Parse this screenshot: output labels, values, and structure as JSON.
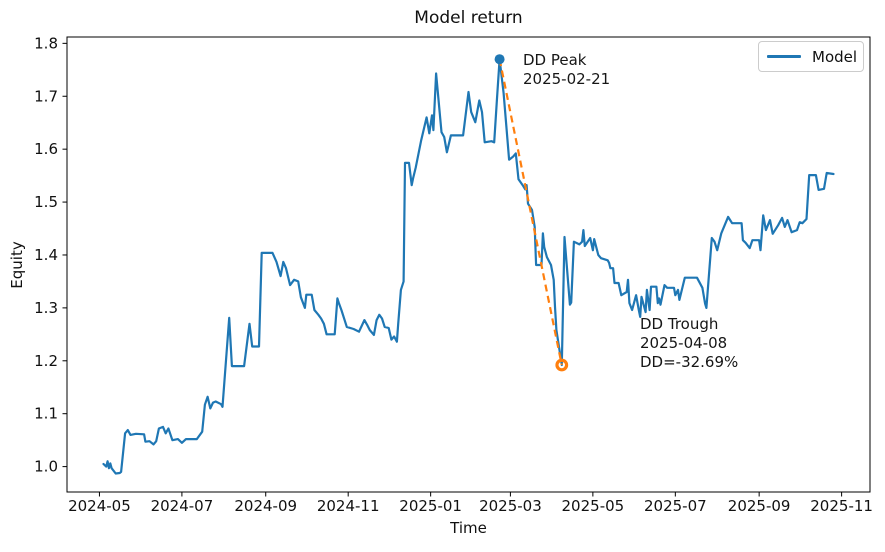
{
  "chart_data": {
    "type": "line",
    "title": "Model return",
    "xlabel": "Time",
    "ylabel": "Equity",
    "grid": false,
    "legend_position": "upper right",
    "xlim": [
      "2024-04-07",
      "2025-11-22"
    ],
    "ylim": [
      0.952,
      1.812
    ],
    "x_ticks": [
      {
        "label": "2024-05",
        "date": "2024-05-01"
      },
      {
        "label": "2024-07",
        "date": "2024-07-01"
      },
      {
        "label": "2024-09",
        "date": "2024-09-01"
      },
      {
        "label": "2024-11",
        "date": "2024-11-01"
      },
      {
        "label": "2025-01",
        "date": "2025-01-01"
      },
      {
        "label": "2025-03",
        "date": "2025-03-01"
      },
      {
        "label": "2025-05",
        "date": "2025-05-01"
      },
      {
        "label": "2025-07",
        "date": "2025-07-01"
      },
      {
        "label": "2025-09",
        "date": "2025-09-01"
      },
      {
        "label": "2025-11",
        "date": "2025-11-01"
      }
    ],
    "y_ticks": [
      1.0,
      1.1,
      1.2,
      1.3,
      1.4,
      1.5,
      1.6,
      1.7,
      1.8
    ],
    "series": [
      {
        "name": "Model",
        "color": "#1f77b4",
        "style": "solid",
        "points": [
          [
            "2024-05-04",
            1.005
          ],
          [
            "2024-05-06",
            1.0
          ],
          [
            "2024-05-07",
            1.01
          ],
          [
            "2024-05-08",
            0.997
          ],
          [
            "2024-05-09",
            1.006
          ],
          [
            "2024-05-10",
            0.997
          ],
          [
            "2024-05-13",
            0.987
          ],
          [
            "2024-05-16",
            0.988
          ],
          [
            "2024-05-17",
            0.99
          ],
          [
            "2024-05-20",
            1.063
          ],
          [
            "2024-05-22",
            1.069
          ],
          [
            "2024-05-24",
            1.06
          ],
          [
            "2024-05-28",
            1.062
          ],
          [
            "2024-06-03",
            1.061
          ],
          [
            "2024-06-04",
            1.047
          ],
          [
            "2024-06-07",
            1.048
          ],
          [
            "2024-06-10",
            1.042
          ],
          [
            "2024-06-12",
            1.048
          ],
          [
            "2024-06-14",
            1.072
          ],
          [
            "2024-06-17",
            1.075
          ],
          [
            "2024-06-19",
            1.063
          ],
          [
            "2024-06-21",
            1.072
          ],
          [
            "2024-06-24",
            1.05
          ],
          [
            "2024-06-28",
            1.052
          ],
          [
            "2024-07-01",
            1.045
          ],
          [
            "2024-07-04",
            1.052
          ],
          [
            "2024-07-12",
            1.052
          ],
          [
            "2024-07-16",
            1.066
          ],
          [
            "2024-07-18",
            1.117
          ],
          [
            "2024-07-20",
            1.132
          ],
          [
            "2024-07-22",
            1.11
          ],
          [
            "2024-07-24",
            1.121
          ],
          [
            "2024-07-26",
            1.123
          ],
          [
            "2024-07-30",
            1.118
          ],
          [
            "2024-07-31",
            1.113
          ],
          [
            "2024-08-05",
            1.281
          ],
          [
            "2024-08-07",
            1.19
          ],
          [
            "2024-08-16",
            1.19
          ],
          [
            "2024-08-20",
            1.27
          ],
          [
            "2024-08-22",
            1.227
          ],
          [
            "2024-08-27",
            1.227
          ],
          [
            "2024-08-29",
            1.404
          ],
          [
            "2024-09-06",
            1.404
          ],
          [
            "2024-09-09",
            1.387
          ],
          [
            "2024-09-12",
            1.36
          ],
          [
            "2024-09-14",
            1.387
          ],
          [
            "2024-09-16",
            1.375
          ],
          [
            "2024-09-19",
            1.343
          ],
          [
            "2024-09-22",
            1.353
          ],
          [
            "2024-09-25",
            1.35
          ],
          [
            "2024-09-27",
            1.32
          ],
          [
            "2024-09-30",
            1.3
          ],
          [
            "2024-10-01",
            1.325
          ],
          [
            "2024-10-05",
            1.325
          ],
          [
            "2024-10-07",
            1.296
          ],
          [
            "2024-10-10",
            1.287
          ],
          [
            "2024-10-12",
            1.28
          ],
          [
            "2024-10-14",
            1.27
          ],
          [
            "2024-10-16",
            1.25
          ],
          [
            "2024-10-22",
            1.25
          ],
          [
            "2024-10-24",
            1.318
          ],
          [
            "2024-10-25",
            1.31
          ],
          [
            "2024-10-27",
            1.296
          ],
          [
            "2024-10-31",
            1.264
          ],
          [
            "2024-11-05",
            1.26
          ],
          [
            "2024-11-09",
            1.255
          ],
          [
            "2024-11-13",
            1.277
          ],
          [
            "2024-11-15",
            1.268
          ],
          [
            "2024-11-17",
            1.258
          ],
          [
            "2024-11-20",
            1.249
          ],
          [
            "2024-11-22",
            1.277
          ],
          [
            "2024-11-24",
            1.287
          ],
          [
            "2024-11-26",
            1.28
          ],
          [
            "2024-11-28",
            1.264
          ],
          [
            "2024-12-01",
            1.262
          ],
          [
            "2024-12-03",
            1.24
          ],
          [
            "2024-12-05",
            1.246
          ],
          [
            "2024-12-07",
            1.236
          ],
          [
            "2024-12-08",
            1.27
          ],
          [
            "2024-12-10",
            1.334
          ],
          [
            "2024-12-12",
            1.35
          ],
          [
            "2024-12-13",
            1.574
          ],
          [
            "2024-12-16",
            1.574
          ],
          [
            "2024-12-18",
            1.532
          ],
          [
            "2024-12-19",
            1.545
          ],
          [
            "2024-12-21",
            1.566
          ],
          [
            "2024-12-25",
            1.617
          ],
          [
            "2024-12-29",
            1.66
          ],
          [
            "2024-12-31",
            1.63
          ],
          [
            "2025-01-02",
            1.664
          ],
          [
            "2025-01-03",
            1.636
          ],
          [
            "2025-01-05",
            1.743
          ],
          [
            "2025-01-09",
            1.632
          ],
          [
            "2025-01-11",
            1.623
          ],
          [
            "2025-01-13",
            1.594
          ],
          [
            "2025-01-16",
            1.626
          ],
          [
            "2025-01-25",
            1.626
          ],
          [
            "2025-01-29",
            1.708
          ],
          [
            "2025-01-31",
            1.67
          ],
          [
            "2025-02-03",
            1.651
          ],
          [
            "2025-02-06",
            1.692
          ],
          [
            "2025-02-08",
            1.67
          ],
          [
            "2025-02-10",
            1.613
          ],
          [
            "2025-02-15",
            1.615
          ],
          [
            "2025-02-17",
            1.613
          ],
          [
            "2025-02-19",
            1.693
          ],
          [
            "2025-02-21",
            1.77
          ],
          [
            "2025-02-24",
            1.706
          ],
          [
            "2025-02-26",
            1.642
          ],
          [
            "2025-02-28",
            1.58
          ],
          [
            "2025-03-03",
            1.586
          ],
          [
            "2025-03-05",
            1.592
          ],
          [
            "2025-03-07",
            1.543
          ],
          [
            "2025-03-10",
            1.532
          ],
          [
            "2025-03-12",
            1.524
          ],
          [
            "2025-03-13",
            1.532
          ],
          [
            "2025-03-14",
            1.497
          ],
          [
            "2025-03-17",
            1.485
          ],
          [
            "2025-03-19",
            1.453
          ],
          [
            "2025-03-20",
            1.381
          ],
          [
            "2025-03-24",
            1.381
          ],
          [
            "2025-03-25",
            1.441
          ],
          [
            "2025-03-26",
            1.415
          ],
          [
            "2025-03-28",
            1.396
          ],
          [
            "2025-03-31",
            1.381
          ],
          [
            "2025-04-02",
            1.353
          ],
          [
            "2025-04-03",
            1.302
          ],
          [
            "2025-04-04",
            1.258
          ],
          [
            "2025-04-08",
            1.192
          ],
          [
            "2025-04-09",
            1.31
          ],
          [
            "2025-04-10",
            1.434
          ],
          [
            "2025-04-14",
            1.306
          ],
          [
            "2025-04-15",
            1.31
          ],
          [
            "2025-04-17",
            1.425
          ],
          [
            "2025-04-21",
            1.42
          ],
          [
            "2025-04-23",
            1.425
          ],
          [
            "2025-04-24",
            1.447
          ],
          [
            "2025-04-25",
            1.417
          ],
          [
            "2025-04-29",
            1.432
          ],
          [
            "2025-05-01",
            1.409
          ],
          [
            "2025-05-02",
            1.43
          ],
          [
            "2025-05-05",
            1.4
          ],
          [
            "2025-05-07",
            1.394
          ],
          [
            "2025-05-12",
            1.39
          ],
          [
            "2025-05-13",
            1.385
          ],
          [
            "2025-05-14",
            1.375
          ],
          [
            "2025-05-16",
            1.375
          ],
          [
            "2025-05-17",
            1.347
          ],
          [
            "2025-05-20",
            1.347
          ],
          [
            "2025-05-22",
            1.324
          ],
          [
            "2025-05-26",
            1.33
          ],
          [
            "2025-05-27",
            1.353
          ],
          [
            "2025-05-28",
            1.309
          ],
          [
            "2025-05-30",
            1.296
          ],
          [
            "2025-06-02",
            1.324
          ],
          [
            "2025-06-04",
            1.296
          ],
          [
            "2025-06-05",
            1.283
          ],
          [
            "2025-06-06",
            1.321
          ],
          [
            "2025-06-09",
            1.292
          ],
          [
            "2025-06-10",
            1.334
          ],
          [
            "2025-06-12",
            1.296
          ],
          [
            "2025-06-13",
            1.34
          ],
          [
            "2025-06-17",
            1.34
          ],
          [
            "2025-06-18",
            1.309
          ],
          [
            "2025-06-19",
            1.318
          ],
          [
            "2025-06-20",
            1.306
          ],
          [
            "2025-06-23",
            1.343
          ],
          [
            "2025-06-25",
            1.338
          ],
          [
            "2025-06-30",
            1.338
          ],
          [
            "2025-07-01",
            1.324
          ],
          [
            "2025-07-03",
            1.334
          ],
          [
            "2025-07-04",
            1.315
          ],
          [
            "2025-07-08",
            1.357
          ],
          [
            "2025-07-17",
            1.357
          ],
          [
            "2025-07-21",
            1.338
          ],
          [
            "2025-07-23",
            1.308
          ],
          [
            "2025-07-24",
            1.3
          ],
          [
            "2025-07-28",
            1.432
          ],
          [
            "2025-07-30",
            1.425
          ],
          [
            "2025-08-01",
            1.409
          ],
          [
            "2025-08-04",
            1.441
          ],
          [
            "2025-08-09",
            1.472
          ],
          [
            "2025-08-12",
            1.46
          ],
          [
            "2025-08-19",
            1.46
          ],
          [
            "2025-08-20",
            1.428
          ],
          [
            "2025-08-22",
            1.423
          ],
          [
            "2025-08-25",
            1.413
          ],
          [
            "2025-08-27",
            1.428
          ],
          [
            "2025-09-01",
            1.428
          ],
          [
            "2025-09-02",
            1.409
          ],
          [
            "2025-09-04",
            1.475
          ],
          [
            "2025-09-06",
            1.447
          ],
          [
            "2025-09-09",
            1.466
          ],
          [
            "2025-09-11",
            1.44
          ],
          [
            "2025-09-15",
            1.456
          ],
          [
            "2025-09-18",
            1.47
          ],
          [
            "2025-09-20",
            1.453
          ],
          [
            "2025-09-22",
            1.466
          ],
          [
            "2025-09-25",
            1.443
          ],
          [
            "2025-09-29",
            1.447
          ],
          [
            "2025-10-01",
            1.462
          ],
          [
            "2025-10-03",
            1.46
          ],
          [
            "2025-10-06",
            1.468
          ],
          [
            "2025-10-08",
            1.551
          ],
          [
            "2025-10-13",
            1.551
          ],
          [
            "2025-10-15",
            1.523
          ],
          [
            "2025-10-19",
            1.525
          ],
          [
            "2025-10-21",
            1.555
          ],
          [
            "2025-10-26",
            1.553
          ]
        ]
      }
    ],
    "drawdown": {
      "peak": {
        "date": "2025-02-21",
        "value": 1.77,
        "marker_color": "#1f77b4"
      },
      "trough": {
        "date": "2025-04-08",
        "value": 1.192,
        "dd_pct": -32.69,
        "marker_color": "#ff7f0e"
      },
      "connector": {
        "color": "#ff7f0e",
        "style": "dashed"
      }
    },
    "annotations": {
      "peak": {
        "line1": "DD Peak",
        "line2": "2025-02-21"
      },
      "trough": {
        "line1": "DD Trough",
        "line2": "2025-04-08",
        "line3": "DD=-32.69%"
      }
    },
    "colors": {
      "model_line": "#1f77b4",
      "drawdown_line": "#ff7f0e",
      "axis": "#000000",
      "text": "#111111"
    }
  }
}
